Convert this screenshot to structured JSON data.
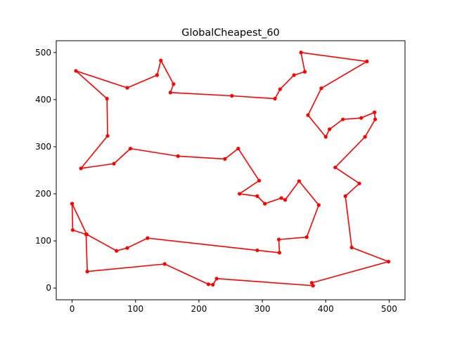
{
  "chart_data": {
    "type": "line",
    "title": "GlobalCheapest_60",
    "xlabel": "",
    "ylabel": "",
    "xlim": [
      -25,
      525
    ],
    "ylim": [
      -25,
      525
    ],
    "xticks": [
      0,
      100,
      200,
      300,
      400,
      500
    ],
    "yticks": [
      0,
      100,
      200,
      300,
      400,
      500
    ],
    "grid": false,
    "line_color": "#ff0000",
    "series": [
      {
        "x": [
          0,
          23,
          70,
          87,
          119,
          292,
          327,
          326,
          370,
          389,
          358,
          336,
          330,
          304,
          292,
          264,
          295,
          262,
          241,
          167,
          92,
          66,
          14,
          56,
          55,
          6,
          87,
          134,
          140,
          160,
          155,
          252,
          320,
          328,
          350,
          367,
          361,
          465,
          393,
          372,
          400,
          406,
          427,
          456,
          477,
          478,
          462,
          415,
          453,
          431,
          441,
          499,
          378,
          380,
          228,
          222,
          215,
          146,
          24,
          22,
          1,
          0
        ],
        "y": [
          179,
          114,
          79,
          85,
          106,
          80,
          75,
          103,
          108,
          176,
          227,
          187,
          191,
          179,
          195,
          200,
          228,
          296,
          274,
          280,
          296,
          264,
          254,
          323,
          402,
          461,
          425,
          452,
          483,
          433,
          415,
          408,
          402,
          422,
          452,
          459,
          500,
          481,
          424,
          367,
          321,
          337,
          358,
          361,
          373,
          358,
          321,
          256,
          222,
          195,
          86,
          56,
          11,
          5,
          20,
          7,
          8,
          51,
          35,
          114,
          123,
          179
        ]
      }
    ]
  }
}
